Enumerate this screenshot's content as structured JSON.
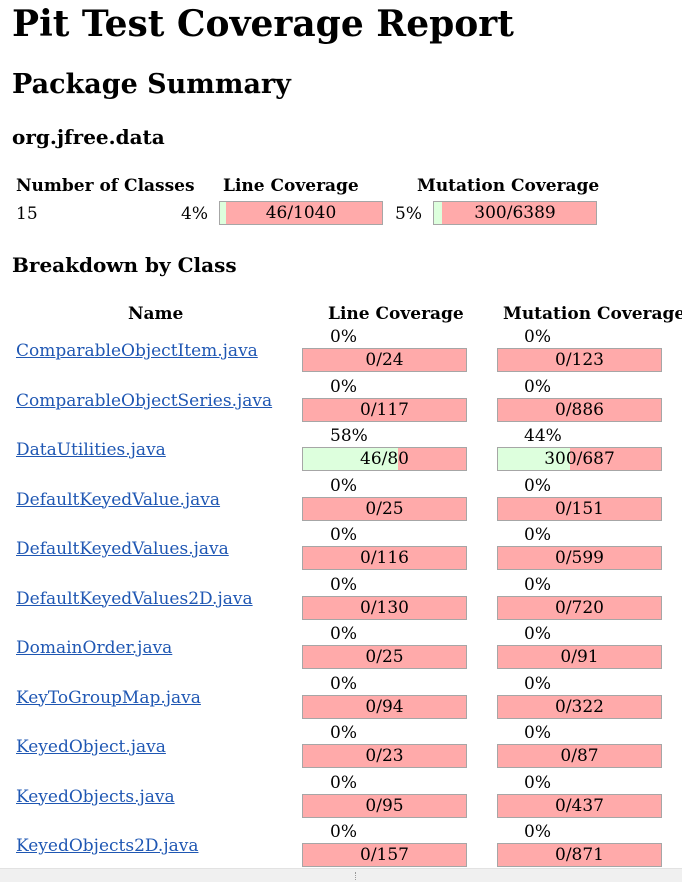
{
  "title": "Pit Test Coverage Report",
  "package_summary": {
    "heading": "Package Summary",
    "package_name": "org.jfree.data",
    "headers": {
      "classes": "Number of Classes",
      "line": "Line Coverage",
      "mutation": "Mutation Coverage"
    },
    "num_classes": "15",
    "line_pct": "4%",
    "line_value": "46/1040",
    "line_fraction": 0.04,
    "mutation_pct": "5%",
    "mutation_value": "300/6389",
    "mutation_fraction": 0.05
  },
  "breakdown": {
    "heading": "Breakdown by Class",
    "headers": {
      "name": "Name",
      "line": "Line Coverage",
      "mutation": "Mutation Coverage"
    },
    "rows": [
      {
        "name": "ComparableObjectItem.java",
        "line_pct": "0%",
        "line_value": "0/24",
        "line_fraction": 0,
        "mutation_pct": "0%",
        "mutation_value": "0/123",
        "mutation_fraction": 0
      },
      {
        "name": "ComparableObjectSeries.java",
        "line_pct": "0%",
        "line_value": "0/117",
        "line_fraction": 0,
        "mutation_pct": "0%",
        "mutation_value": "0/886",
        "mutation_fraction": 0
      },
      {
        "name": "DataUtilities.java",
        "line_pct": "58%",
        "line_value": "46/80",
        "line_fraction": 0.58,
        "mutation_pct": "44%",
        "mutation_value": "300/687",
        "mutation_fraction": 0.44
      },
      {
        "name": "DefaultKeyedValue.java",
        "line_pct": "0%",
        "line_value": "0/25",
        "line_fraction": 0,
        "mutation_pct": "0%",
        "mutation_value": "0/151",
        "mutation_fraction": 0
      },
      {
        "name": "DefaultKeyedValues.java",
        "line_pct": "0%",
        "line_value": "0/116",
        "line_fraction": 0,
        "mutation_pct": "0%",
        "mutation_value": "0/599",
        "mutation_fraction": 0
      },
      {
        "name": "DefaultKeyedValues2D.java",
        "line_pct": "0%",
        "line_value": "0/130",
        "line_fraction": 0,
        "mutation_pct": "0%",
        "mutation_value": "0/720",
        "mutation_fraction": 0
      },
      {
        "name": "DomainOrder.java",
        "line_pct": "0%",
        "line_value": "0/25",
        "line_fraction": 0,
        "mutation_pct": "0%",
        "mutation_value": "0/91",
        "mutation_fraction": 0
      },
      {
        "name": "KeyToGroupMap.java",
        "line_pct": "0%",
        "line_value": "0/94",
        "line_fraction": 0,
        "mutation_pct": "0%",
        "mutation_value": "0/322",
        "mutation_fraction": 0
      },
      {
        "name": "KeyedObject.java",
        "line_pct": "0%",
        "line_value": "0/23",
        "line_fraction": 0,
        "mutation_pct": "0%",
        "mutation_value": "0/87",
        "mutation_fraction": 0
      },
      {
        "name": "KeyedObjects.java",
        "line_pct": "0%",
        "line_value": "0/95",
        "line_fraction": 0,
        "mutation_pct": "0%",
        "mutation_value": "0/437",
        "mutation_fraction": 0
      },
      {
        "name": "KeyedObjects2D.java",
        "line_pct": "0%",
        "line_value": "0/157",
        "line_fraction": 0,
        "mutation_pct": "0%",
        "mutation_value": "0/871",
        "mutation_fraction": 0
      }
    ]
  },
  "colors": {
    "covered": "#ddffdd",
    "uncovered": "#ffaaaa",
    "link": "#1f57b3"
  }
}
